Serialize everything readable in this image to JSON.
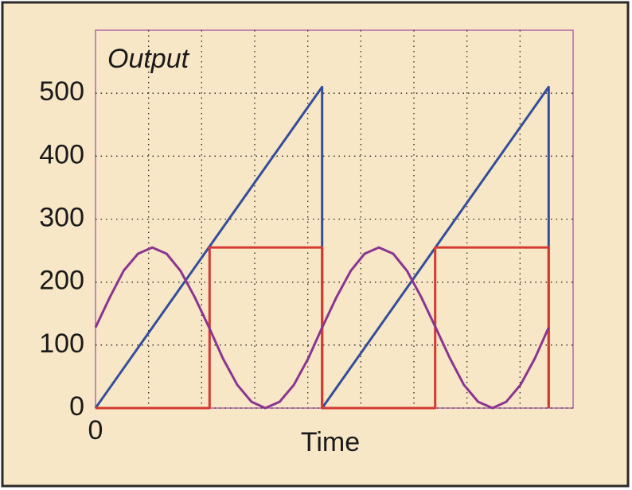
{
  "chart_data": {
    "type": "line",
    "title": "Output",
    "x_label": "Time",
    "xlim": [
      0,
      9
    ],
    "ylim": [
      0,
      600
    ],
    "xticks": [
      0
    ],
    "xgrid": [
      1,
      2,
      3,
      4,
      5,
      6,
      7,
      8
    ],
    "yticks": [
      0,
      100,
      200,
      300,
      400,
      500
    ],
    "grid": true,
    "series": [
      {
        "color": "#334e9c",
        "x": [
          0,
          4.27,
          4.27,
          8.54,
          8.54
        ],
        "values": [
          0,
          510,
          0,
          510,
          0
        ]
      },
      {
        "color": "#d23a32",
        "x": [
          0,
          2.15,
          2.15,
          4.27,
          4.27,
          6.4,
          6.4,
          8.54,
          8.54
        ],
        "values": [
          0,
          0,
          255,
          255,
          0,
          0,
          255,
          255,
          0
        ]
      },
      {
        "color": "#8b3590",
        "x": [
          0,
          0.27,
          0.53,
          0.8,
          1.07,
          1.34,
          1.6,
          1.87,
          2.14,
          2.4,
          2.67,
          2.94,
          3.2,
          3.47,
          3.74,
          4.01,
          4.27,
          4.54,
          4.81,
          5.07,
          5.34,
          5.61,
          5.87,
          6.14,
          6.41,
          6.68,
          6.94,
          7.21,
          7.48,
          7.74,
          8.01,
          8.28,
          8.54
        ],
        "values": [
          128,
          176,
          218,
          245,
          255,
          245,
          218,
          176,
          128,
          79,
          37,
          10,
          0,
          10,
          37,
          79,
          128,
          176,
          218,
          245,
          255,
          245,
          218,
          176,
          128,
          79,
          37,
          10,
          0,
          10,
          37,
          79,
          128
        ]
      }
    ]
  }
}
